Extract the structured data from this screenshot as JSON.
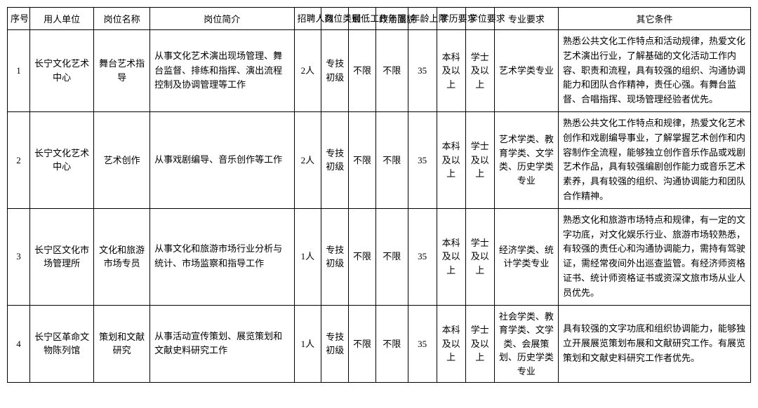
{
  "headers": {
    "seq": "序号",
    "dept": "用人单位",
    "post": "岗位名称",
    "desc": "岗位简介",
    "num": "招聘人数",
    "cat": "岗位类别",
    "year": "最低工作年限",
    "pol": "政治面貌",
    "age": "年龄上限",
    "edu": "学历要求",
    "deg": "学位要求",
    "maj": "专业要求",
    "other": "其它条件"
  },
  "rows": [
    {
      "seq": "1",
      "dept": "长宁文化艺术中心",
      "post": "舞台艺术指导",
      "desc": "从事文化艺术演出现场管理、舞台监督、排练和指挥、演出流程控制及协调管理等工作",
      "num": "2人",
      "cat": "专技初级",
      "year": "不限",
      "pol": "不限",
      "age": "35",
      "edu": "本科及以上",
      "deg": "学士及以上",
      "maj": "艺术学类专业",
      "other": "熟悉公共文化工作特点和活动规律，热爱文化艺术演出行业，了解基础的文化活动工作内容、职责和流程，具有较强的组织、沟通协调能力和团队合作精神，责任心强。有舞台监督、合唱指挥、现场管理经验者优先。"
    },
    {
      "seq": "2",
      "dept": "长宁文化艺术中心",
      "post": "艺术创作",
      "desc": "从事戏剧编导、音乐创作等工作",
      "num": "2人",
      "cat": "专技初级",
      "year": "不限",
      "pol": "不限",
      "age": "35",
      "edu": "本科及以上",
      "deg": "学士及以上",
      "maj": "艺术学类、教育学类、文学类、历史学类专业",
      "other": "熟悉公共文化工作特点和规律，热爱文化艺术创作和戏剧编导事业，了解掌握艺术创作和内容制作全流程，能够独立创作音乐作品或戏剧艺术作品，具有较强编剧创作能力或音乐艺术素养，具有较强的组织、沟通协调能力和团队合作精神。"
    },
    {
      "seq": "3",
      "dept": "长宁区文化市场管理所",
      "post": "文化和旅游市场专员",
      "desc": "从事文化和旅游市场行业分析与统计、市场监察和指导工作",
      "num": "1人",
      "cat": "专技初级",
      "year": "不限",
      "pol": "不限",
      "age": "35",
      "edu": "本科及以上",
      "deg": "学士及以上",
      "maj": "经济学类、统计学类专业",
      "other": "熟悉文化和旅游市场特点和规律，有一定的文字功底，对文化娱乐行业、旅游市场较熟悉，有较强的责任心和沟通协调能力，需持有驾驶证，需经常夜间外出巡查监管。有经济师资格证书、统计师资格证书或资深文旅市场从业人员优先。"
    },
    {
      "seq": "4",
      "dept": "长宁区革命文物陈列馆",
      "post": "策划和文献研究",
      "desc": "从事活动宣传策划、展览策划和文献史料研究工作",
      "num": "1人",
      "cat": "专技初级",
      "year": "不限",
      "pol": "不限",
      "age": "35",
      "edu": "本科及以上",
      "deg": "学士及以上",
      "maj": "社会学类、教育学类、文学类、会展策划、历史学类专业",
      "other": "具有较强的文字功底和组织协调能力，能够独立开展展览策划布展和文献研究工作。有展览策划和文献史料研究工作者优先。"
    }
  ]
}
